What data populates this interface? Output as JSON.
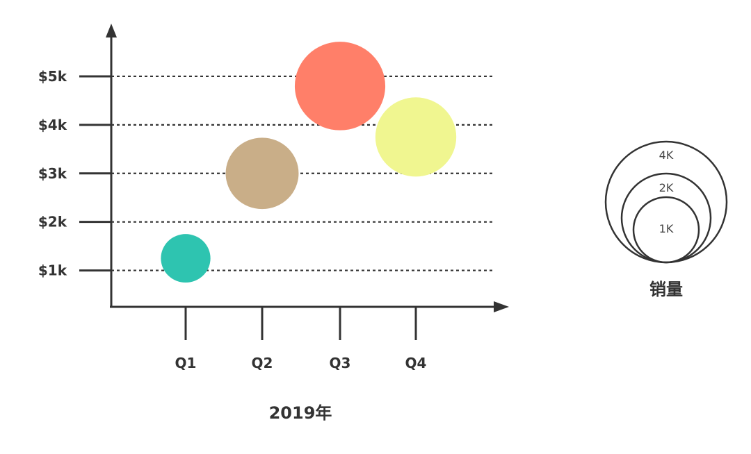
{
  "chart_data": {
    "type": "scatter",
    "subtype": "bubble",
    "title": "",
    "xlabel": "2019年",
    "ylabel": "",
    "categories": [
      "Q1",
      "Q2",
      "Q3",
      "Q4"
    ],
    "y_ticks": [
      {
        "value": 1,
        "label": "$1k"
      },
      {
        "value": 2,
        "label": "$2k"
      },
      {
        "value": 3,
        "label": "$3k"
      },
      {
        "value": 4,
        "label": "$4k"
      },
      {
        "value": 5,
        "label": "$5k"
      }
    ],
    "ylim": [
      0.25,
      5.6
    ],
    "grid": true,
    "points": [
      {
        "category": "Q1",
        "y": 1.25,
        "size_k": 0.6,
        "color": "#2EC4B0"
      },
      {
        "category": "Q2",
        "y": 3.0,
        "size_k": 1.3,
        "color": "#C9AE88"
      },
      {
        "category": "Q3",
        "y": 4.8,
        "size_k": 2.0,
        "color": "#FF7F69"
      },
      {
        "category": "Q4",
        "y": 3.75,
        "size_k": 1.6,
        "color": "#F0F690"
      }
    ],
    "legend": {
      "title": "销量",
      "placement": "right",
      "entries": [
        {
          "label": "4K",
          "size_k": 4
        },
        {
          "label": "2K",
          "size_k": 2
        },
        {
          "label": "1K",
          "size_k": 1
        }
      ]
    }
  }
}
